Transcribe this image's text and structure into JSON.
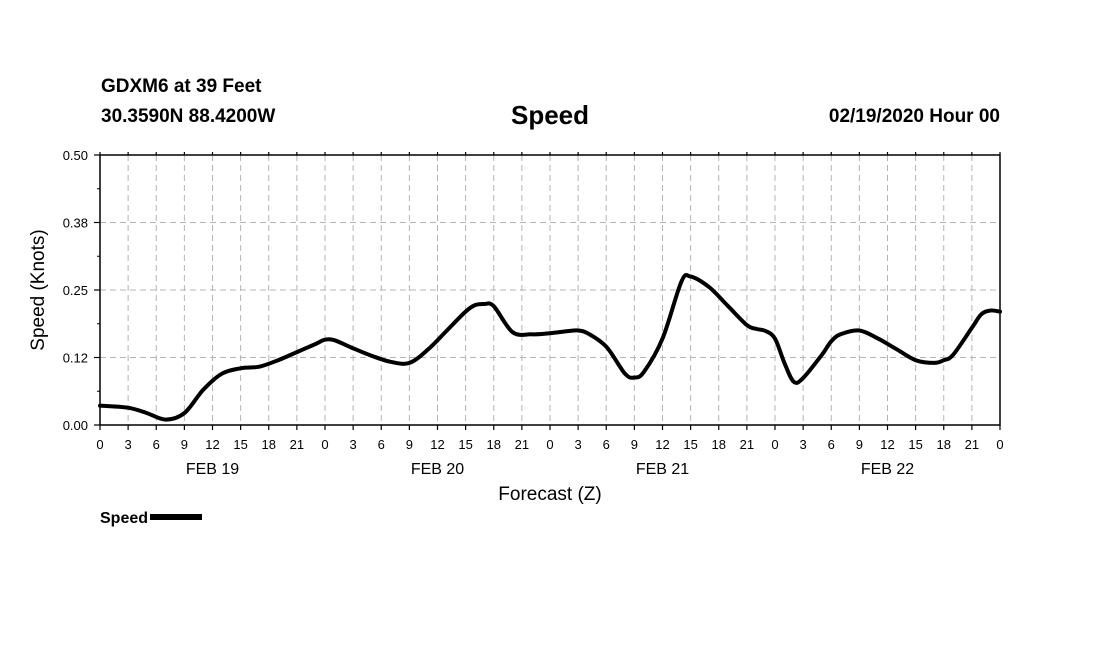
{
  "header": {
    "station": "GDXM6 at 39 Feet",
    "coords": "30.3590N 88.4200W",
    "title": "Speed",
    "datetime": "02/19/2020 Hour 00"
  },
  "legend": {
    "label": "Speed"
  },
  "chart_data": {
    "type": "line",
    "title": "Speed",
    "xlabel": "Forecast (Z)",
    "ylabel": "Speed (Knots)",
    "ylim": [
      0,
      0.5
    ],
    "yticks": [
      "0.00",
      "0.12",
      "0.25",
      "0.38",
      "0.50"
    ],
    "xlim": [
      0,
      96
    ],
    "x_tick_labels": [
      "0",
      "3",
      "6",
      "9",
      "12",
      "15",
      "18",
      "21",
      "0",
      "3",
      "6",
      "9",
      "12",
      "15",
      "18",
      "21",
      "0",
      "3",
      "6",
      "9",
      "12",
      "15",
      "18",
      "21",
      "0",
      "3",
      "6",
      "9",
      "12",
      "15",
      "18",
      "21",
      "0"
    ],
    "day_labels": [
      {
        "label": "FEB 19",
        "hour": 12
      },
      {
        "label": "FEB 20",
        "hour": 36
      },
      {
        "label": "FEB 21",
        "hour": 60
      },
      {
        "label": "FEB 22",
        "hour": 84
      }
    ],
    "grid": true,
    "legend": "bottom-left",
    "series": [
      {
        "name": "Speed",
        "color": "#000000",
        "x": [
          0,
          3,
          5,
          7,
          9,
          11,
          13,
          15,
          17,
          19,
          21,
          23,
          24,
          25,
          27,
          29,
          31,
          33,
          35,
          37,
          39,
          40,
          41,
          42,
          44,
          46,
          48,
          50,
          51,
          52,
          54,
          56,
          57,
          58,
          60,
          62,
          63,
          65,
          67,
          69,
          70,
          71,
          72,
          73,
          74,
          75,
          77,
          78,
          79,
          81,
          83,
          85,
          87,
          89,
          90,
          91,
          93,
          94,
          95,
          96
        ],
        "y": [
          0.036,
          0.032,
          0.022,
          0.01,
          0.022,
          0.065,
          0.095,
          0.105,
          0.108,
          0.12,
          0.135,
          0.15,
          0.158,
          0.157,
          0.142,
          0.128,
          0.117,
          0.115,
          0.14,
          0.175,
          0.21,
          0.222,
          0.224,
          0.22,
          0.172,
          0.168,
          0.17,
          0.174,
          0.175,
          0.17,
          0.145,
          0.095,
          0.088,
          0.098,
          0.16,
          0.265,
          0.275,
          0.255,
          0.22,
          0.185,
          0.178,
          0.174,
          0.16,
          0.115,
          0.08,
          0.087,
          0.13,
          0.155,
          0.168,
          0.175,
          0.16,
          0.14,
          0.12,
          0.115,
          0.12,
          0.13,
          0.18,
          0.205,
          0.212,
          0.21
        ]
      }
    ]
  }
}
